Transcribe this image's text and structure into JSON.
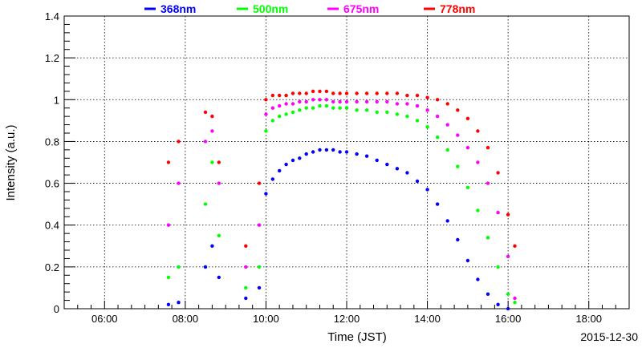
{
  "chart_data": {
    "type": "scatter",
    "xlabel": "Time (JST)",
    "ylabel": "Intensity (a.u.)",
    "date": "2015-12-30",
    "xlim": [
      "05:00",
      "19:00"
    ],
    "ylim": [
      0,
      1.4
    ],
    "x_ticks": [
      "06:00",
      "08:00",
      "10:00",
      "12:00",
      "14:00",
      "16:00",
      "18:00"
    ],
    "y_ticks": [
      "0",
      "0.2",
      "0.4",
      "0.6",
      "0.8",
      "1",
      "1.2",
      "1.4"
    ],
    "grid": true,
    "legend": "top",
    "series": [
      {
        "name": "368nm",
        "color": "#0000ff",
        "x": [
          "07:35",
          "07:50",
          "08:30",
          "08:40",
          "08:50",
          "09:30",
          "09:50",
          "10:00",
          "10:10",
          "10:20",
          "10:30",
          "10:40",
          "10:50",
          "11:00",
          "11:10",
          "11:20",
          "11:30",
          "11:40",
          "11:50",
          "12:00",
          "12:15",
          "12:30",
          "12:45",
          "13:00",
          "13:15",
          "13:30",
          "13:45",
          "14:00",
          "14:15",
          "14:30",
          "14:45",
          "15:00",
          "15:15",
          "15:30",
          "15:45",
          "16:00"
        ],
        "y": [
          0.02,
          0.03,
          0.2,
          0.3,
          0.15,
          0.05,
          0.1,
          0.55,
          0.62,
          0.66,
          0.69,
          0.71,
          0.72,
          0.74,
          0.75,
          0.76,
          0.76,
          0.76,
          0.75,
          0.75,
          0.74,
          0.73,
          0.71,
          0.69,
          0.67,
          0.65,
          0.61,
          0.57,
          0.5,
          0.42,
          0.33,
          0.23,
          0.14,
          0.07,
          0.02,
          0.0
        ]
      },
      {
        "name": "500nm",
        "color": "#00ff00",
        "x": [
          "07:35",
          "07:50",
          "08:30",
          "08:40",
          "08:50",
          "09:30",
          "09:50",
          "10:00",
          "10:10",
          "10:20",
          "10:30",
          "10:40",
          "10:50",
          "11:00",
          "11:10",
          "11:20",
          "11:30",
          "11:40",
          "11:50",
          "12:00",
          "12:15",
          "12:30",
          "12:45",
          "13:00",
          "13:15",
          "13:30",
          "13:45",
          "14:00",
          "14:15",
          "14:30",
          "14:45",
          "15:00",
          "15:15",
          "15:30",
          "15:45",
          "16:00",
          "16:10"
        ],
        "y": [
          0.15,
          0.2,
          0.5,
          0.7,
          0.35,
          0.1,
          0.2,
          0.85,
          0.9,
          0.92,
          0.93,
          0.94,
          0.95,
          0.96,
          0.96,
          0.97,
          0.97,
          0.96,
          0.96,
          0.96,
          0.95,
          0.95,
          0.94,
          0.94,
          0.93,
          0.92,
          0.9,
          0.87,
          0.82,
          0.76,
          0.68,
          0.58,
          0.47,
          0.34,
          0.2,
          0.07,
          0.03
        ]
      },
      {
        "name": "675nm",
        "color": "#ff00ff",
        "x": [
          "07:35",
          "07:50",
          "08:30",
          "08:40",
          "08:50",
          "09:30",
          "09:50",
          "10:00",
          "10:10",
          "10:20",
          "10:30",
          "10:40",
          "10:50",
          "11:00",
          "11:10",
          "11:20",
          "11:30",
          "11:40",
          "11:50",
          "12:00",
          "12:15",
          "12:30",
          "12:45",
          "13:00",
          "13:15",
          "13:30",
          "13:45",
          "14:00",
          "14:15",
          "14:30",
          "14:45",
          "15:00",
          "15:15",
          "15:30",
          "15:45",
          "16:00",
          "16:10"
        ],
        "y": [
          0.4,
          0.6,
          0.8,
          0.85,
          0.6,
          0.2,
          0.4,
          0.93,
          0.96,
          0.97,
          0.98,
          0.98,
          0.99,
          0.99,
          1.0,
          1.0,
          1.0,
          0.99,
          0.99,
          0.99,
          0.99,
          0.99,
          0.99,
          0.99,
          0.98,
          0.98,
          0.97,
          0.95,
          0.92,
          0.88,
          0.83,
          0.77,
          0.7,
          0.6,
          0.46,
          0.25,
          0.05
        ]
      },
      {
        "name": "778nm",
        "color": "#ff0000",
        "x": [
          "07:35",
          "07:50",
          "08:30",
          "08:40",
          "08:50",
          "09:30",
          "09:50",
          "10:00",
          "10:10",
          "10:20",
          "10:30",
          "10:40",
          "10:50",
          "11:00",
          "11:10",
          "11:20",
          "11:30",
          "11:40",
          "11:50",
          "12:00",
          "12:15",
          "12:30",
          "12:45",
          "13:00",
          "13:15",
          "13:30",
          "13:45",
          "14:00",
          "14:15",
          "14:30",
          "14:45",
          "15:00",
          "15:15",
          "15:30",
          "15:45",
          "16:00",
          "16:10"
        ],
        "y": [
          0.7,
          0.8,
          0.94,
          0.92,
          0.7,
          0.3,
          0.6,
          1.0,
          1.02,
          1.02,
          1.02,
          1.03,
          1.03,
          1.03,
          1.04,
          1.04,
          1.04,
          1.03,
          1.03,
          1.03,
          1.03,
          1.03,
          1.03,
          1.03,
          1.03,
          1.02,
          1.02,
          1.01,
          1.0,
          0.98,
          0.95,
          0.91,
          0.85,
          0.77,
          0.65,
          0.45,
          0.3
        ]
      }
    ]
  }
}
